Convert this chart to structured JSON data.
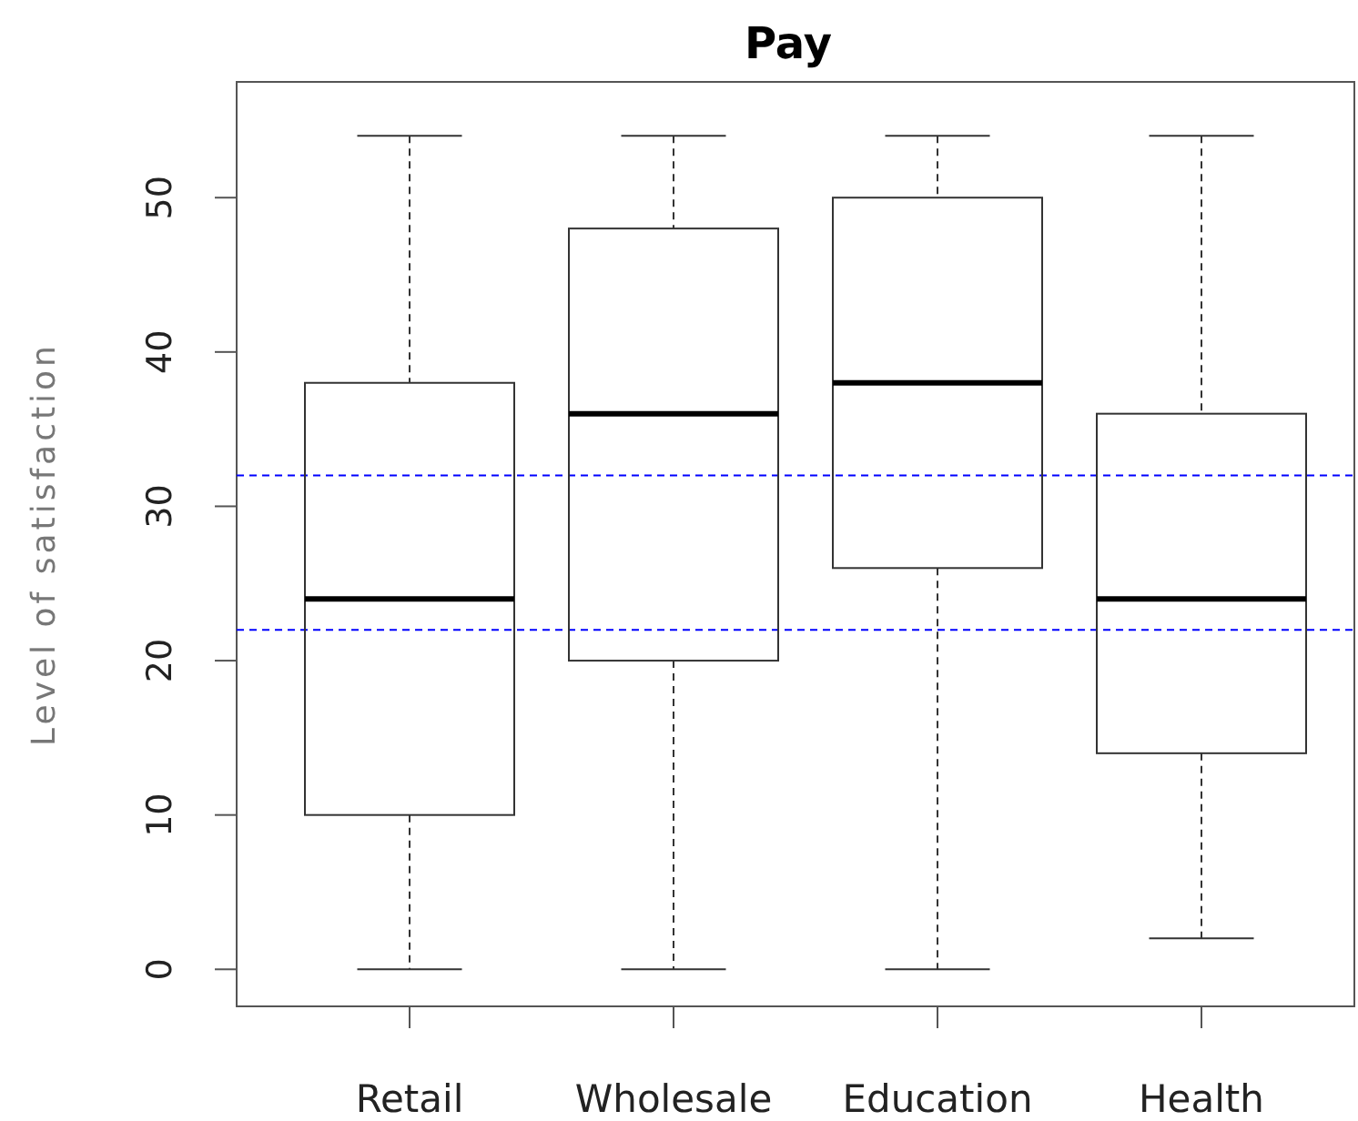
{
  "chart_data": {
    "type": "box",
    "title": "Pay",
    "ylabel": "Level of satisfaction",
    "categories": [
      "Retail",
      "Wholesale",
      "Education",
      "Health"
    ],
    "boxes": [
      {
        "low": 0,
        "q1": 10,
        "median": 24,
        "q3": 38,
        "high": 54
      },
      {
        "low": 0,
        "q1": 20,
        "median": 36,
        "q3": 48,
        "high": 54
      },
      {
        "low": 0,
        "q1": 26,
        "median": 38,
        "q3": 50,
        "high": 54
      },
      {
        "low": 2,
        "q1": 14,
        "median": 24,
        "q3": 36,
        "high": 54
      }
    ],
    "ylim": [
      -2.4,
      57.5
    ],
    "yticks": [
      0,
      10,
      20,
      30,
      40,
      50
    ],
    "ref_lines": [
      {
        "axis": "y",
        "value": 32,
        "color": "#0000ff",
        "line_style": "dashed"
      },
      {
        "axis": "y",
        "value": 22,
        "color": "#0000ff",
        "line_style": "dashed"
      }
    ],
    "tick_labels": true
  }
}
